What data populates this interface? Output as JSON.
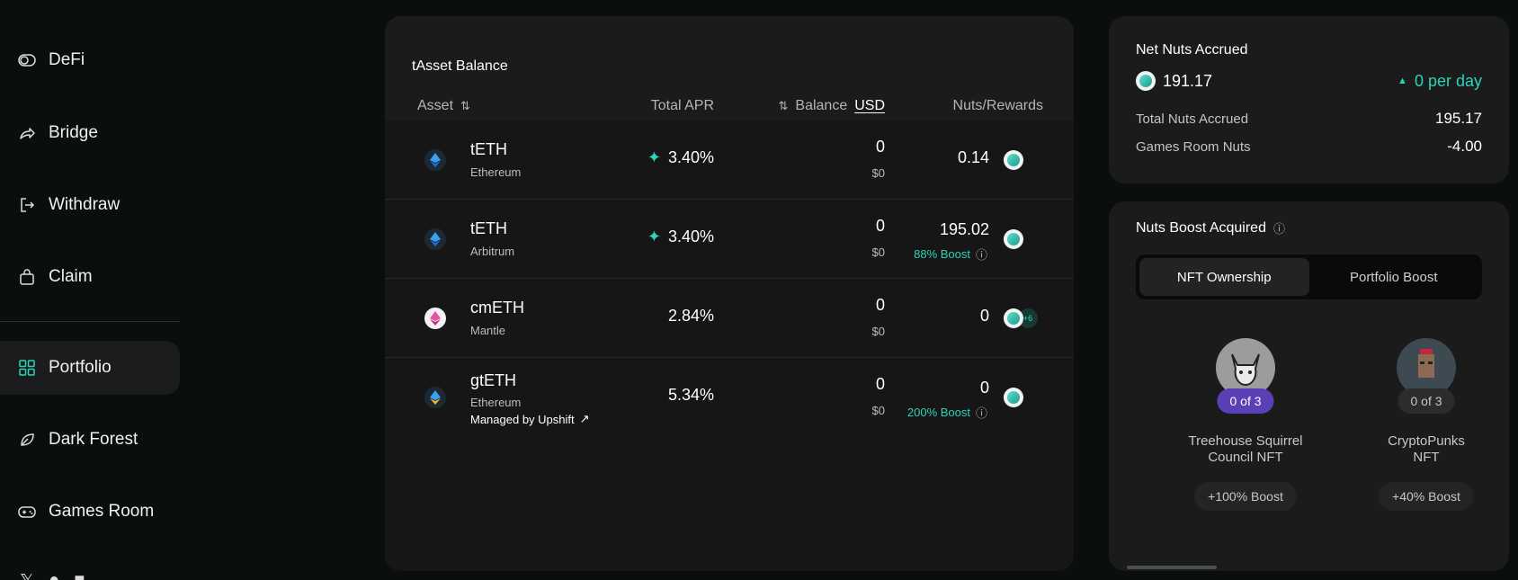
{
  "sidebar": {
    "items": [
      {
        "label": "DeFi",
        "icon": "toggle-icon"
      },
      {
        "label": "Bridge",
        "icon": "share-arrow-icon"
      },
      {
        "label": "Withdraw",
        "icon": "logout-icon"
      },
      {
        "label": "Claim",
        "icon": "bag-icon"
      },
      {
        "label": "Portfolio",
        "icon": "grid-icon",
        "active": true
      },
      {
        "label": "Dark Forest",
        "icon": "leaf-icon"
      },
      {
        "label": "Games Room",
        "icon": "gamepad-icon"
      }
    ],
    "accent": "#2ed3b7"
  },
  "balance": {
    "title": "tAsset Balance",
    "headers": {
      "asset": "Asset",
      "apr": "Total APR",
      "balance": "Balance",
      "currency": "USD",
      "nuts": "Nuts/Rewards"
    },
    "rows": [
      {
        "name": "tETH",
        "chain": "Ethereum",
        "apr": "3.40%",
        "balance": "0",
        "usd": "$0",
        "nuts": "0.14"
      },
      {
        "name": "tETH",
        "chain": "Arbitrum",
        "apr": "3.40%",
        "balance": "0",
        "usd": "$0",
        "nuts": "195.02",
        "boost": "88% Boost"
      },
      {
        "name": "cmETH",
        "chain": "Mantle",
        "apr": "2.84%",
        "balance": "0",
        "usd": "$0",
        "nuts": "0",
        "extra": "+6"
      },
      {
        "name": "gtETH",
        "chain": "Ethereum",
        "managed": "Managed by Upshift",
        "apr": "5.34%",
        "balance": "0",
        "usd": "$0",
        "nuts": "0",
        "boost": "200% Boost"
      }
    ]
  },
  "nuts": {
    "title": "Net Nuts Accrued",
    "net": "191.17",
    "rate": "0 per day",
    "total_label": "Total Nuts Accrued",
    "total": "195.17",
    "games_label": "Games Room Nuts",
    "games": "-4.00"
  },
  "boost": {
    "title": "Nuts Boost Acquired",
    "tabs": [
      "NFT Ownership",
      "Portfolio Boost"
    ],
    "cards": [
      {
        "count": "0 of 3",
        "name1": "Treehouse Squirrel",
        "name2": "Council NFT",
        "boost": "+100% Boost"
      },
      {
        "count": "0 of 3",
        "name1": "CryptoPunks",
        "name2": "NFT",
        "boost": "+40% Boost"
      }
    ]
  }
}
